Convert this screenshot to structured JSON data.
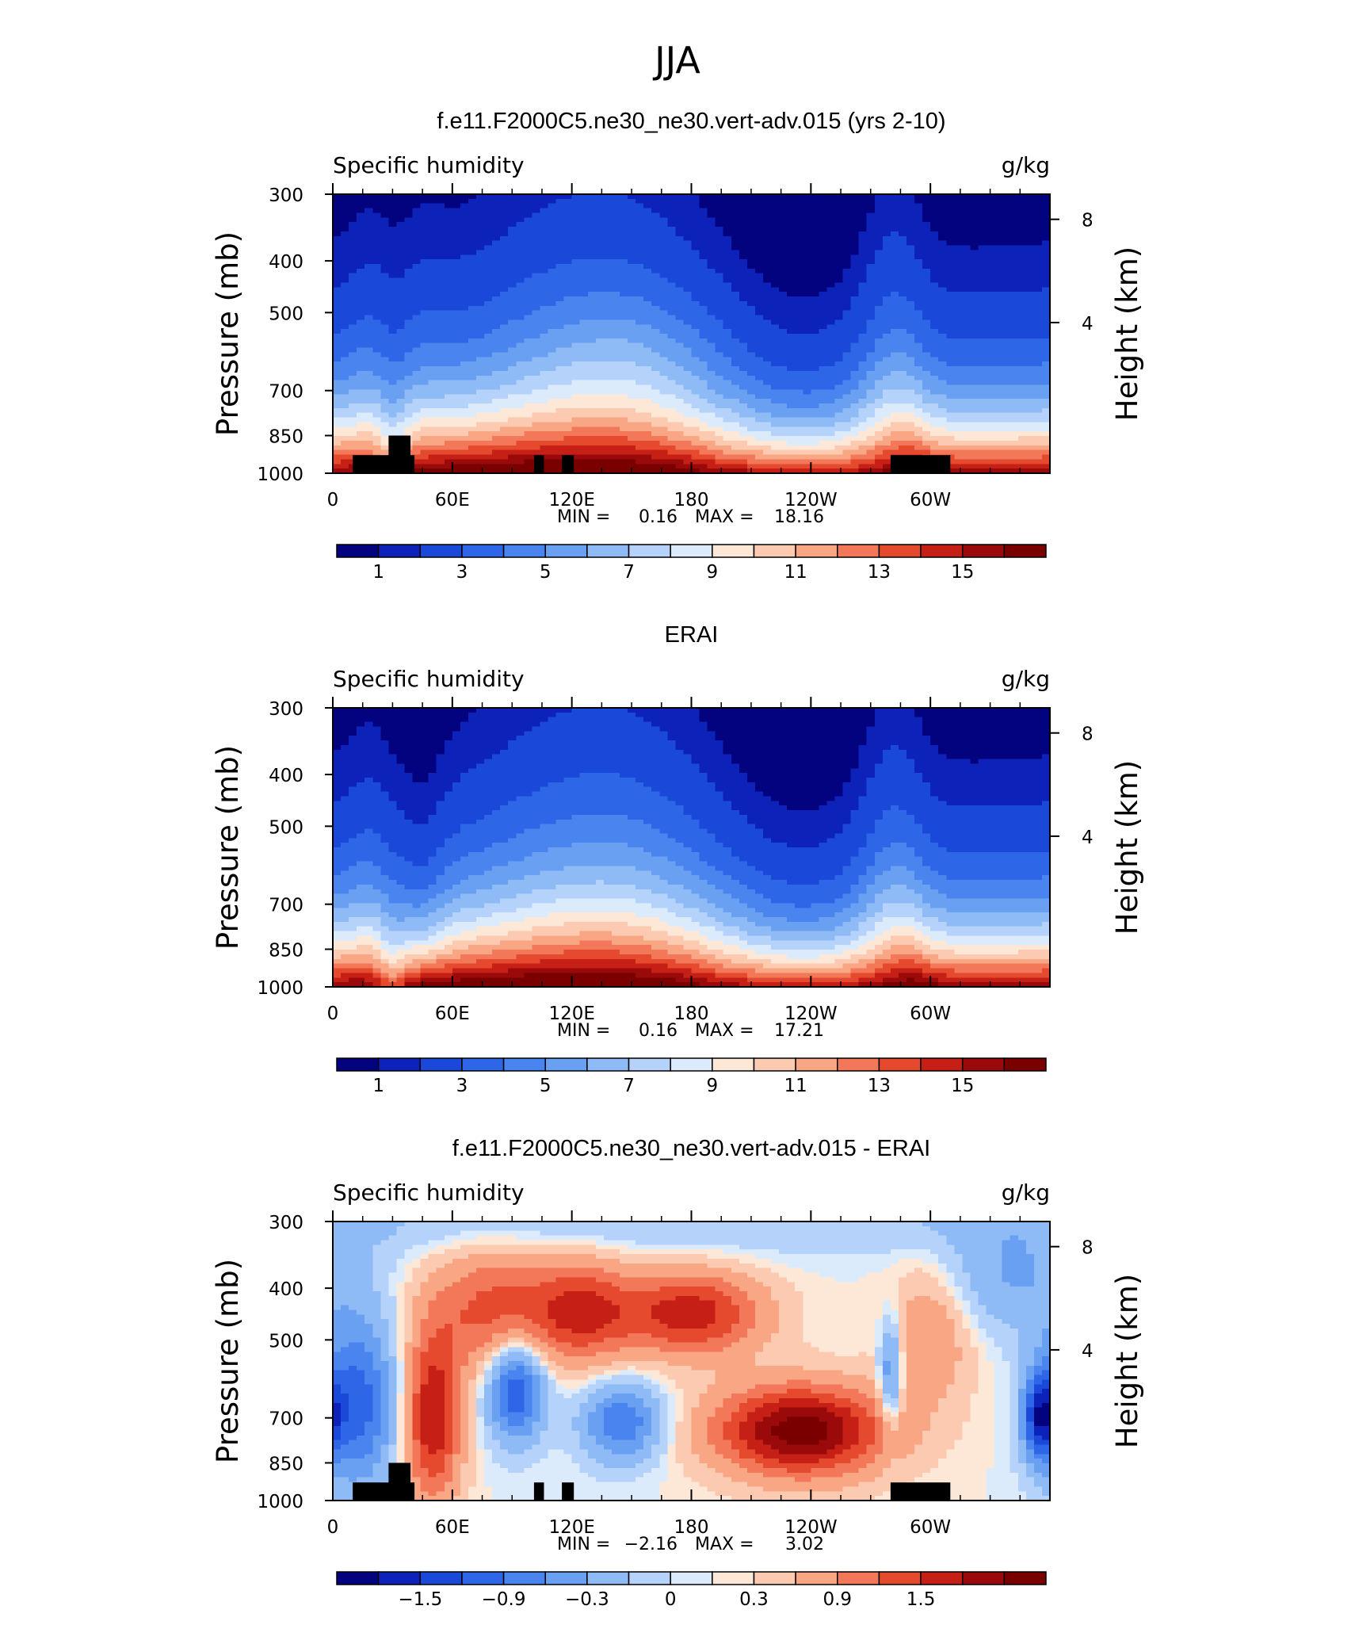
{
  "page": {
    "title": "JJA"
  },
  "colors": {
    "blues_reds_16": [
      "#03037f",
      "#0c22b8",
      "#1a48d8",
      "#2e66e8",
      "#4a84ee",
      "#6aa0f2",
      "#8ebaf6",
      "#b4d2fa",
      "#dcebfc",
      "#fde8d8",
      "#fbcab0",
      "#f8a684",
      "#f3785a",
      "#e64a2e",
      "#c62016",
      "#9a0a0a",
      "#7a0000"
    ],
    "q_bands": [
      "#03037f",
      "#0c22b8",
      "#1a48d8",
      "#2e66e8",
      "#4a84ee",
      "#6aa0f2",
      "#8ebaf6",
      "#b4d2fa",
      "#dcebfc",
      "#fde8d8",
      "#fbcab0",
      "#f8a684",
      "#f3785a",
      "#e64a2e",
      "#c62016",
      "#9a0a0a",
      "#7a0000"
    ],
    "land_mask": "#000000"
  },
  "chart_data": [
    {
      "type": "heatmap",
      "title": "f.e11.F2000C5.ne30_ne30.vert-adv.015 (yrs 2-10)",
      "left_string": "Specific humidity",
      "right_string": "g/kg",
      "ylabel": "Pressure (mb)",
      "y2label": "Height (km)",
      "x_ticks": [
        "0",
        "60E",
        "120E",
        "180",
        "120W",
        "60W"
      ],
      "y_ticks": [
        "300",
        "400",
        "500",
        "700",
        "850",
        "1000"
      ],
      "y2_ticks": [
        "8",
        "4"
      ],
      "stats": {
        "min_label": "MIN =",
        "min": "0.16",
        "max_label": "MAX =",
        "max": "18.16"
      },
      "colorbar_labels": [
        "1",
        "3",
        "5",
        "7",
        "9",
        "11",
        "13",
        "15"
      ],
      "field": "model",
      "ylim": [
        1000,
        300
      ],
      "xlim": [
        0,
        360
      ],
      "levels": [
        0.5,
        1,
        2,
        3,
        4,
        5,
        6,
        7,
        8,
        9,
        10,
        11,
        12,
        13,
        14,
        15,
        16
      ]
    },
    {
      "type": "heatmap",
      "title": "ERAI",
      "left_string": "Specific humidity",
      "right_string": "g/kg",
      "ylabel": "Pressure (mb)",
      "y2label": "Height (km)",
      "x_ticks": [
        "0",
        "60E",
        "120E",
        "180",
        "120W",
        "60W"
      ],
      "y_ticks": [
        "300",
        "400",
        "500",
        "700",
        "850",
        "1000"
      ],
      "y2_ticks": [
        "8",
        "4"
      ],
      "stats": {
        "min_label": "MIN =",
        "min": "0.16",
        "max_label": "MAX =",
        "max": "17.21"
      },
      "colorbar_labels": [
        "1",
        "3",
        "5",
        "7",
        "9",
        "11",
        "13",
        "15"
      ],
      "field": "obs",
      "ylim": [
        1000,
        300
      ],
      "xlim": [
        0,
        360
      ],
      "levels": [
        0.5,
        1,
        2,
        3,
        4,
        5,
        6,
        7,
        8,
        9,
        10,
        11,
        12,
        13,
        14,
        15,
        16
      ]
    },
    {
      "type": "heatmap",
      "title": "f.e11.F2000C5.ne30_ne30.vert-adv.015 - ERAI",
      "left_string": "Specific humidity",
      "right_string": "g/kg",
      "ylabel": "Pressure (mb)",
      "y2label": "Height (km)",
      "x_ticks": [
        "0",
        "60E",
        "120E",
        "180",
        "120W",
        "60W"
      ],
      "y_ticks": [
        "300",
        "400",
        "500",
        "700",
        "850",
        "1000"
      ],
      "y2_ticks": [
        "8",
        "4"
      ],
      "stats": {
        "min_label": "MIN =",
        "min": "−2.16",
        "max_label": "MAX =",
        "max": "3.02"
      },
      "colorbar_labels": [
        "−1.5",
        "−0.9",
        "−0.3",
        "0",
        "0.3",
        "0.9",
        "1.5"
      ],
      "field": "diff",
      "ylim": [
        1000,
        300
      ],
      "xlim": [
        0,
        360
      ],
      "levels": [
        -2.1,
        -1.8,
        -1.5,
        -1.2,
        -0.9,
        -0.6,
        -0.3,
        -0.1,
        0,
        0.1,
        0.3,
        0.6,
        0.9,
        1.2,
        1.5,
        1.8
      ]
    }
  ]
}
